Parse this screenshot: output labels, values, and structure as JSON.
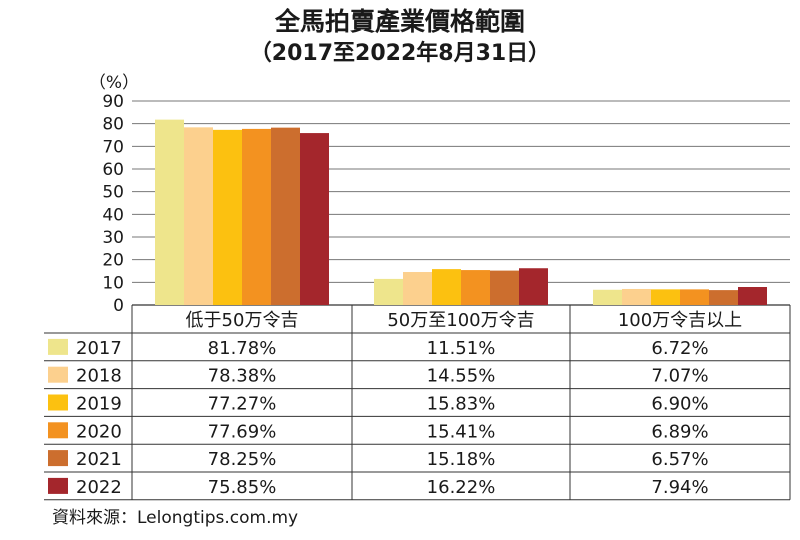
{
  "title": "全馬拍賣產業價格範圍",
  "subtitle": "（2017至2022年8月31日）",
  "source": "資料來源：Lelongtips.com.my",
  "chart_data": {
    "type": "bar",
    "title": "全馬拍賣產業價格範圍",
    "subtitle": "（2017至2022年8月31日）",
    "ylabel": "（%）",
    "ylim": [
      0,
      90
    ],
    "yticks": [
      0,
      10,
      20,
      30,
      40,
      50,
      60,
      70,
      80,
      90
    ],
    "grid": true,
    "legend": "table-left",
    "categories": [
      "低于50万令吉",
      "50万至100万令吉",
      "100万令吉以上"
    ],
    "series": [
      {
        "name": "2017",
        "color": "#EEE58C",
        "values": [
          81.78,
          11.51,
          6.72
        ],
        "labels": [
          "81.78%",
          "11.51%",
          "6.72%"
        ]
      },
      {
        "name": "2018",
        "color": "#FCD08E",
        "values": [
          78.38,
          14.55,
          7.07
        ],
        "labels": [
          "78.38%",
          "14.55%",
          "7.07%"
        ]
      },
      {
        "name": "2019",
        "color": "#FCC110",
        "values": [
          77.27,
          15.83,
          6.9
        ],
        "labels": [
          "77.27%",
          "15.83%",
          "6.90%"
        ]
      },
      {
        "name": "2020",
        "color": "#F39220",
        "values": [
          77.69,
          15.41,
          6.89
        ],
        "labels": [
          "77.69%",
          "15.41%",
          "6.89%"
        ]
      },
      {
        "name": "2021",
        "color": "#CC6E2E",
        "values": [
          78.25,
          15.18,
          6.57
        ],
        "labels": [
          "78.25%",
          "15.18%",
          "6.57%"
        ]
      },
      {
        "name": "2022",
        "color": "#A4262C",
        "values": [
          75.85,
          16.22,
          7.94
        ],
        "labels": [
          "75.85%",
          "16.22%",
          "7.94%"
        ]
      }
    ]
  }
}
